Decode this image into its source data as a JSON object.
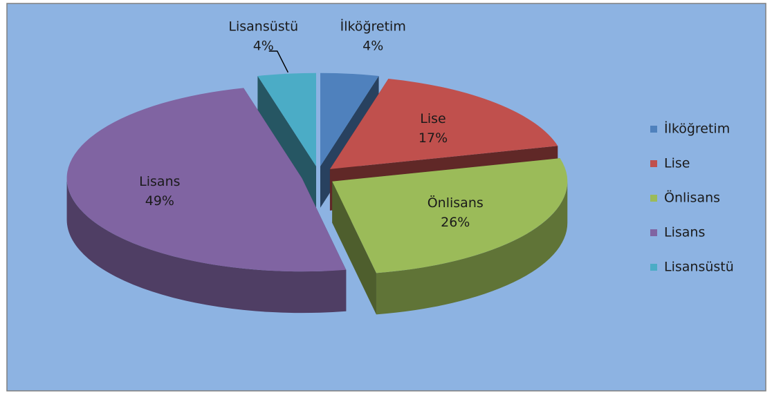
{
  "chart_data": {
    "type": "pie",
    "categories": [
      "İlköğretim",
      "Lise",
      "Önlisans",
      "Lisans",
      "Lisansüstü"
    ],
    "values": [
      4,
      17,
      26,
      49,
      4
    ],
    "value_labels": [
      "4%",
      "17%",
      "26%",
      "49%",
      "4%"
    ],
    "colors": [
      "#4f81bd",
      "#c0504d",
      "#9bbb59",
      "#8064a2",
      "#4bacc6"
    ],
    "legend": "right"
  }
}
